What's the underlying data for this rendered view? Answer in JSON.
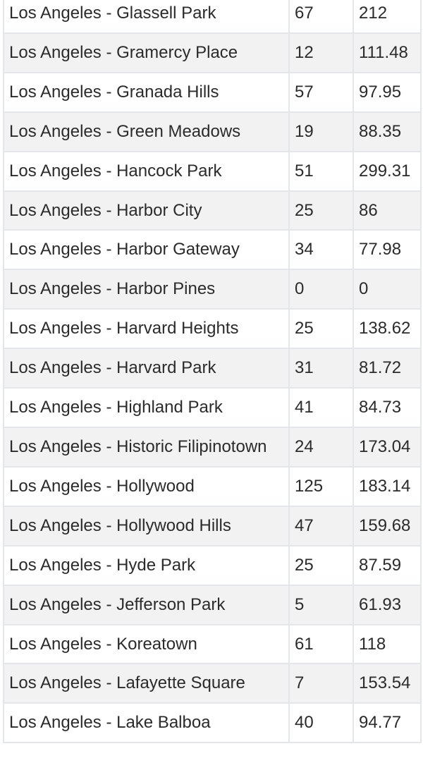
{
  "table": {
    "rows": [
      {
        "name": "Los Angeles - Glassell Park",
        "count": "67",
        "value": "212"
      },
      {
        "name": "Los Angeles - Gramercy Place",
        "count": "12",
        "value": "111.48"
      },
      {
        "name": "Los Angeles - Granada Hills",
        "count": "57",
        "value": "97.95"
      },
      {
        "name": "Los Angeles - Green Meadows",
        "count": "19",
        "value": "88.35"
      },
      {
        "name": "Los Angeles - Hancock Park",
        "count": "51",
        "value": "299.31"
      },
      {
        "name": "Los Angeles - Harbor City",
        "count": "25",
        "value": "86"
      },
      {
        "name": "Los Angeles - Harbor Gateway",
        "count": "34",
        "value": "77.98"
      },
      {
        "name": "Los Angeles - Harbor Pines",
        "count": "0",
        "value": "0"
      },
      {
        "name": "Los Angeles - Harvard Heights",
        "count": "25",
        "value": "138.62"
      },
      {
        "name": "Los Angeles - Harvard Park",
        "count": "31",
        "value": "81.72"
      },
      {
        "name": "Los Angeles - Highland Park",
        "count": "41",
        "value": "84.73"
      },
      {
        "name": "Los Angeles - Historic Filipinotown",
        "count": "24",
        "value": "173.04"
      },
      {
        "name": "Los Angeles - Hollywood",
        "count": "125",
        "value": "183.14"
      },
      {
        "name": "Los Angeles - Hollywood Hills",
        "count": "47",
        "value": "159.68"
      },
      {
        "name": "Los Angeles - Hyde Park",
        "count": "25",
        "value": "87.59"
      },
      {
        "name": "Los Angeles - Jefferson Park",
        "count": "5",
        "value": "61.93"
      },
      {
        "name": "Los Angeles - Koreatown",
        "count": "61",
        "value": "118"
      },
      {
        "name": "Los Angeles - Lafayette Square",
        "count": "7",
        "value": "153.54"
      },
      {
        "name": "Los Angeles - Lake Balboa",
        "count": "40",
        "value": "94.77"
      }
    ]
  }
}
